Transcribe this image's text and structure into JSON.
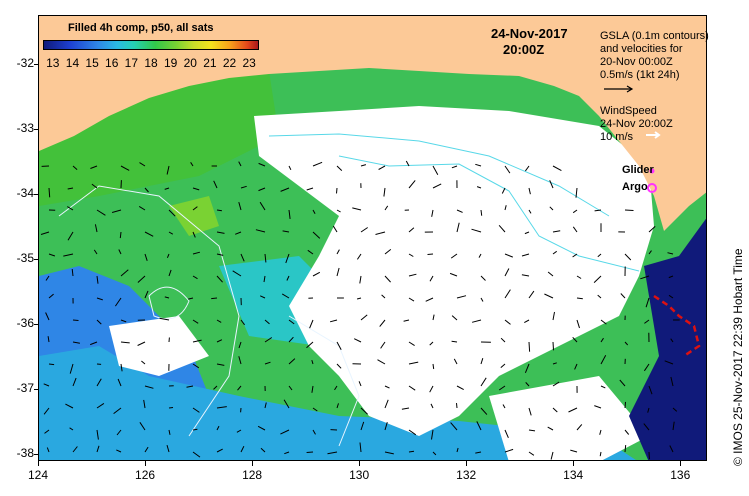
{
  "map": {
    "title": "Filled 4h comp, p50, all sats",
    "date": "24-Nov-2017",
    "time": "20:00Z",
    "colorbar": {
      "labels": [
        "13",
        "14",
        "15",
        "16",
        "17",
        "18",
        "19",
        "20",
        "21",
        "22",
        "23"
      ],
      "min": 12.5,
      "max": 23.5
    },
    "legend": {
      "gsla_lines": [
        "GSLA (0.1m contours)",
        "and velocities for",
        "20-Nov 00:00Z",
        "0.5m/s (1kt 24h)"
      ],
      "wind_lines": [
        "WindSpeed",
        "24-Nov 20:00Z",
        "10 m/s"
      ],
      "glider_label": "Glider",
      "argo_label": "Argo"
    },
    "credit": "© IMOS 25-Nov-2017 22:39 Hobart Time",
    "axes": {
      "x_ticks": [
        "124",
        "126",
        "128",
        "130",
        "132",
        "134",
        "136"
      ],
      "y_ticks": [
        "-32",
        "-33",
        "-34",
        "-35",
        "-36",
        "-37",
        "-38"
      ],
      "lon_range": [
        124,
        136.5
      ],
      "lat_range": [
        -31.25,
        -38.1
      ]
    },
    "colors": {
      "land": "#fcc997",
      "no_data": "#ffffff",
      "contour": "#58d8e8",
      "current_arrows": "#000000",
      "wind_arrows": "#ffffff",
      "glider": "#ff33ff",
      "argo": "#ff33ff",
      "track": "#dd1111"
    }
  }
}
